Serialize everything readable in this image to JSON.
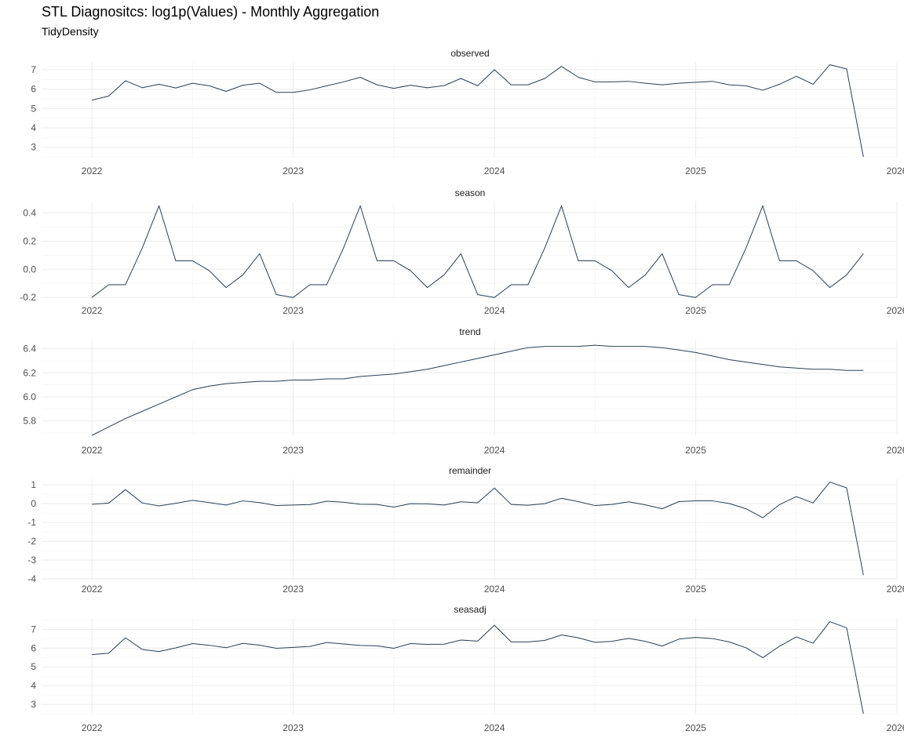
{
  "title": "STL Diagnositcs: log1p(Values) - Monthly Aggregation",
  "subtitle": "TidyDensity",
  "line_color": "#2c3e50",
  "chart_data": {
    "type": "line",
    "xlabel": "",
    "ylabel": "",
    "x_start": "2022-01",
    "x_ticks": [
      "2022",
      "2023",
      "2024",
      "2025",
      "2026"
    ],
    "xlim": [
      "2021-10",
      "2026-01"
    ],
    "grid": true,
    "panels": [
      {
        "name": "observed",
        "ylim": [
          2.5,
          7.4
        ],
        "y_ticks": [
          3,
          4,
          5,
          6,
          7
        ],
        "values": [
          5.43,
          5.64,
          6.43,
          6.07,
          6.25,
          6.06,
          6.3,
          6.17,
          5.88,
          6.2,
          6.3,
          5.83,
          5.83,
          5.96,
          6.17,
          6.37,
          6.61,
          6.22,
          6.04,
          6.2,
          6.07,
          6.18,
          6.55,
          6.17,
          7.0,
          6.22,
          6.22,
          6.55,
          7.17,
          6.61,
          6.37,
          6.37,
          6.4,
          6.3,
          6.22,
          6.3,
          6.35,
          6.4,
          6.22,
          6.17,
          5.94,
          6.25,
          6.66,
          6.25,
          7.26,
          7.04,
          2.5
        ]
      },
      {
        "name": "season",
        "ylim": [
          -0.21,
          0.48
        ],
        "y_ticks": [
          "-0.2",
          "0.0",
          "0.2",
          "0.4"
        ],
        "values": [
          -0.2,
          -0.11,
          -0.11,
          0.15,
          0.45,
          0.06,
          0.06,
          -0.01,
          -0.13,
          -0.04,
          0.11,
          -0.18,
          -0.2,
          -0.11,
          -0.11,
          0.15,
          0.45,
          0.06,
          0.06,
          -0.01,
          -0.13,
          -0.04,
          0.11,
          -0.18,
          -0.2,
          -0.11,
          -0.11,
          0.15,
          0.45,
          0.06,
          0.06,
          -0.01,
          -0.13,
          -0.04,
          0.11,
          -0.18,
          -0.2,
          -0.11,
          -0.11,
          0.15,
          0.45,
          0.06,
          0.06,
          -0.01,
          -0.13,
          -0.04,
          0.11
        ]
      },
      {
        "name": "trend",
        "ylim": [
          5.68,
          6.47
        ],
        "y_ticks": [
          "5.8",
          "6.0",
          "6.2",
          "6.4"
        ],
        "values": [
          5.68,
          5.75,
          5.82,
          5.88,
          5.94,
          6.0,
          6.06,
          6.09,
          6.11,
          6.12,
          6.13,
          6.13,
          6.14,
          6.14,
          6.15,
          6.15,
          6.17,
          6.18,
          6.19,
          6.21,
          6.23,
          6.26,
          6.29,
          6.32,
          6.35,
          6.38,
          6.41,
          6.42,
          6.42,
          6.42,
          6.43,
          6.42,
          6.42,
          6.42,
          6.41,
          6.39,
          6.37,
          6.34,
          6.31,
          6.29,
          6.27,
          6.25,
          6.24,
          6.23,
          6.23,
          6.22,
          6.22
        ]
      },
      {
        "name": "remainder",
        "ylim": [
          -4.0,
          1.3
        ],
        "y_ticks": [
          1,
          0,
          -1,
          -2,
          -3,
          -4
        ],
        "values": [
          -0.03,
          0.03,
          0.75,
          0.04,
          -0.12,
          0.02,
          0.18,
          0.06,
          -0.07,
          0.15,
          0.06,
          -0.1,
          -0.07,
          -0.05,
          0.13,
          0.08,
          -0.03,
          -0.04,
          -0.18,
          0.0,
          -0.01,
          -0.07,
          0.1,
          0.05,
          0.83,
          -0.04,
          -0.08,
          0.0,
          0.29,
          0.11,
          -0.1,
          -0.04,
          0.1,
          -0.06,
          -0.27,
          0.11,
          0.15,
          0.15,
          0.01,
          -0.27,
          -0.75,
          -0.05,
          0.38,
          0.04,
          1.15,
          0.84,
          -3.8
        ]
      },
      {
        "name": "seasadj",
        "ylim": [
          2.5,
          7.6
        ],
        "y_ticks": [
          3,
          4,
          5,
          6,
          7
        ],
        "values": [
          5.65,
          5.73,
          6.55,
          5.93,
          5.82,
          6.01,
          6.24,
          6.15,
          6.02,
          6.25,
          6.16,
          5.99,
          6.04,
          6.09,
          6.3,
          6.22,
          6.14,
          6.12,
          5.99,
          6.24,
          6.2,
          6.21,
          6.43,
          6.37,
          7.22,
          6.33,
          6.33,
          6.41,
          6.7,
          6.55,
          6.31,
          6.36,
          6.52,
          6.36,
          6.11,
          6.48,
          6.57,
          6.51,
          6.33,
          6.02,
          5.49,
          6.1,
          6.6,
          6.26,
          7.41,
          7.08,
          2.5
        ]
      }
    ]
  }
}
